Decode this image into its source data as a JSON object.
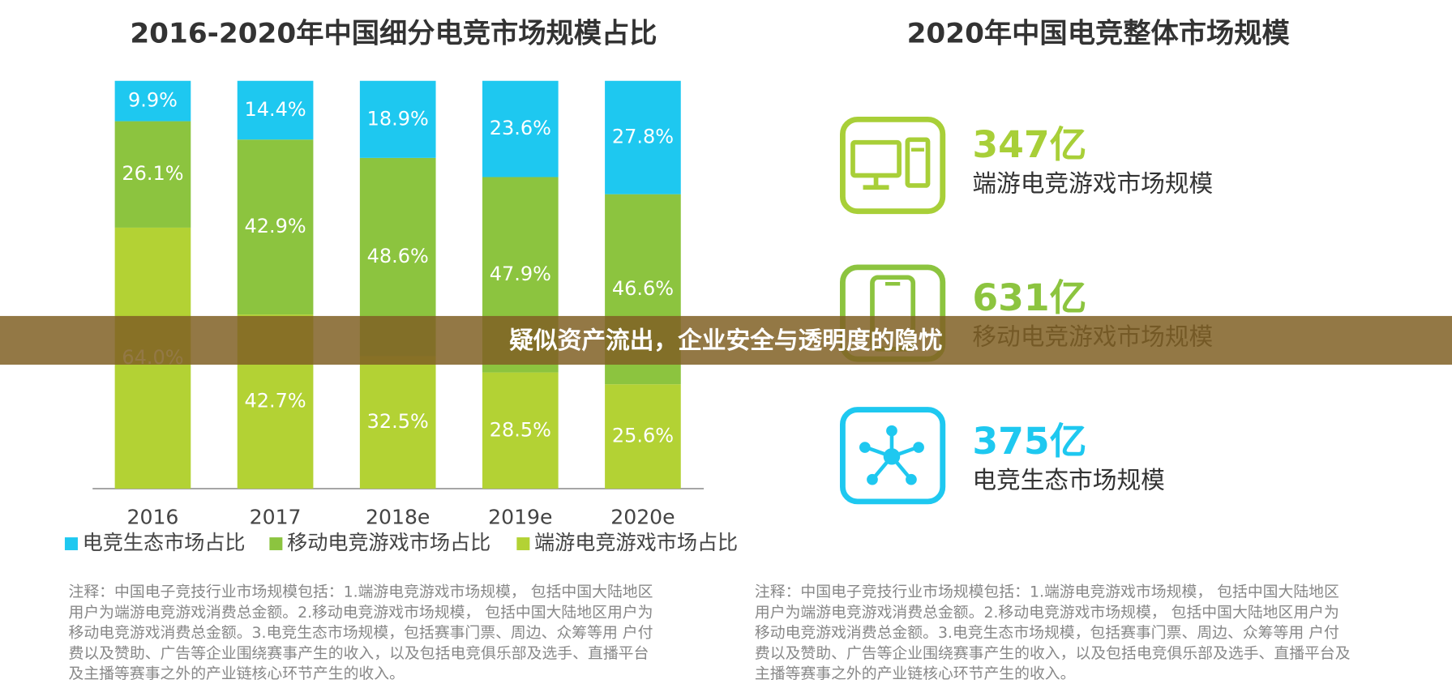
{
  "chart_data": {
    "type": "bar",
    "stacked": true,
    "title": "2016-2020年中国细分电竞市场规模占比",
    "categories": [
      "2016",
      "2017",
      "2018e",
      "2019e",
      "2020e"
    ],
    "series": [
      {
        "name": "电竞生态市场占比",
        "color": "#1ec8f0",
        "values": [
          9.9,
          14.4,
          18.9,
          23.6,
          27.8
        ],
        "value_labels": [
          "9.9%",
          "14.4%",
          "18.9%",
          "23.6%",
          "27.8%"
        ]
      },
      {
        "name": "移动电竞游戏市场占比",
        "color": "#8cc43f",
        "values": [
          26.1,
          42.9,
          48.6,
          47.9,
          46.6
        ],
        "value_labels": [
          "26.1%",
          "42.9%",
          "48.6%",
          "47.9%",
          "46.6%"
        ]
      },
      {
        "name": "端游电竞游戏市场占比",
        "color": "#b3d234",
        "values": [
          64.0,
          42.7,
          32.5,
          28.5,
          25.6
        ],
        "value_labels": [
          "64.0%",
          "42.7%",
          "32.5%",
          "28.5%",
          "25.6%"
        ]
      }
    ]
  },
  "market": {
    "title": "2020年中国电竞整体市场规模",
    "items": [
      {
        "value": "347亿",
        "label": "端游电竞游戏市场规模",
        "color": "#a8cf38"
      },
      {
        "value": "631亿",
        "label": "移动电竞游戏市场规模",
        "color": "#8cc43f"
      },
      {
        "value": "375亿",
        "label": "电竞生态市场规模",
        "color": "#1ec8f0"
      }
    ]
  },
  "notes": {
    "left": [
      "注释：中国电子竞技行业市场规模包括：1.端游电竞游戏市场规模， 包括中国大陆地区",
      "用户为端游电竞游戏消费总金额。2.移动电竞游戏市场规模， 包括中国大陆地区用户为",
      "移动电竞游戏消费总金额。3.电竞生态市场规模，包括赛事门票、周边、众筹等用 户付",
      "费以及赞助、广告等企业围绕赛事产生的收入，以及包括电竞俱乐部及选手、直播平台",
      "及主播等赛事之外的产业链核心环节产生的收入。"
    ],
    "right": [
      "注释：中国电子竞技行业市场规模包括：1.端游电竞游戏市场规模， 包括中国大陆地区",
      "用户为端游电竞游戏消费总金额。2.移动电竞游戏市场规模， 包括中国大陆地区用户为",
      "移动电竞游戏消费总金额。3.电竞生态市场规模，包括赛事门票、周边、众筹等用 户付",
      "费以及赞助、广告等企业围绕赛事产生的收入，以及包括电竞俱乐部及选手、直播平台及",
      "主播等赛事之外的产业链核心环节产生的收入。"
    ]
  },
  "banner": "疑似资产流出，企业安全与透明度的隐忧"
}
